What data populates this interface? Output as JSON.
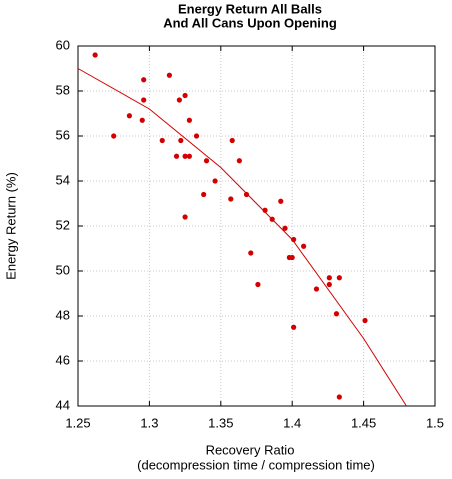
{
  "chart_data": {
    "type": "scatter",
    "title": [
      "Energy Return All Balls",
      "And All Cans Upon Opening"
    ],
    "xlabel": [
      "Recovery Ratio",
      "(decompression time / compression time)"
    ],
    "ylabel": "Energy Return (%)",
    "xlim": [
      1.25,
      1.5
    ],
    "ylim": [
      44,
      60
    ],
    "xticks": [
      1.25,
      1.3,
      1.35,
      1.4,
      1.45,
      1.5
    ],
    "yticks": [
      44,
      46,
      48,
      50,
      52,
      54,
      56,
      58,
      60
    ],
    "grid": true,
    "series": [
      {
        "color": "#d40000",
        "x": [
          1.262,
          1.275,
          1.286,
          1.296,
          1.296,
          1.295,
          1.309,
          1.314,
          1.319,
          1.321,
          1.322,
          1.325,
          1.325,
          1.328,
          1.328,
          1.333,
          1.325,
          1.34,
          1.346,
          1.338,
          1.358,
          1.363,
          1.357,
          1.368,
          1.371,
          1.376,
          1.381,
          1.386,
          1.392,
          1.395,
          1.401,
          1.398,
          1.4,
          1.408,
          1.401,
          1.417,
          1.426,
          1.426,
          1.433,
          1.431,
          1.433,
          1.451
        ],
        "values": [
          59.6,
          56.0,
          56.9,
          58.5,
          57.6,
          56.7,
          55.8,
          58.7,
          55.1,
          57.6,
          55.8,
          57.8,
          55.1,
          55.1,
          56.7,
          56.0,
          52.4,
          54.9,
          54.0,
          53.4,
          55.8,
          54.9,
          53.2,
          53.4,
          50.8,
          49.4,
          52.7,
          52.3,
          53.1,
          51.9,
          51.4,
          50.6,
          50.6,
          51.1,
          47.5,
          49.2,
          49.7,
          49.4,
          49.7,
          48.1,
          44.4,
          47.8
        ]
      },
      {
        "type": "line",
        "color": "#d40000",
        "x": [
          1.25,
          1.3,
          1.35,
          1.4,
          1.45,
          1.48
        ],
        "values": [
          59.0,
          57.2,
          54.6,
          51.4,
          47.0,
          44.0
        ]
      }
    ]
  }
}
